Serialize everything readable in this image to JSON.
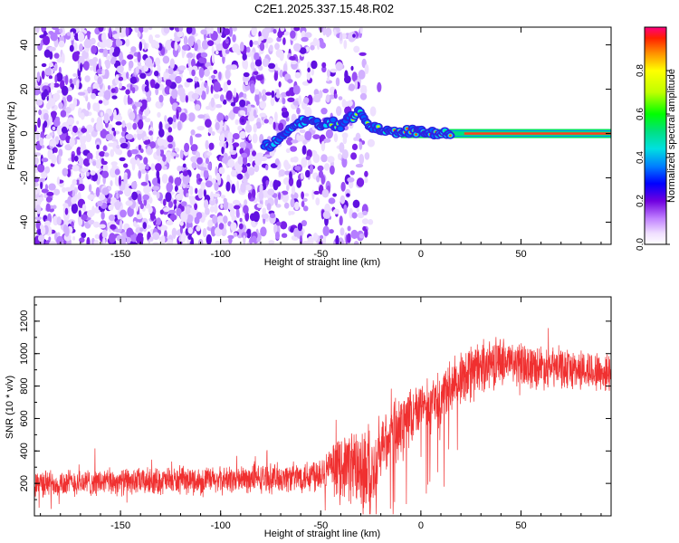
{
  "title": "C2E1.2025.337.15.48.R02",
  "chart_data": [
    {
      "type": "heatmap",
      "xlabel": "Height of straight line (km)",
      "ylabel": "Frequency (Hz)",
      "xlim": [
        -193,
        95
      ],
      "ylim": [
        -50,
        48
      ],
      "xticks": [
        -150,
        -100,
        -50,
        0,
        50
      ],
      "yticks": [
        -40,
        -20,
        0,
        20,
        40
      ],
      "colorbar": {
        "label": "Normalized spectral amplitude",
        "range": [
          0.0,
          1.0
        ],
        "ticks": [
          0.0,
          0.2,
          0.4,
          0.6,
          0.8
        ]
      },
      "noise_region_x": [
        -193,
        -27
      ],
      "ridge": {
        "x": [
          -75,
          -70,
          -65,
          -60,
          -55,
          -50,
          -45,
          -40,
          -35,
          -30,
          -25,
          -20,
          -10,
          0,
          10,
          20,
          50,
          95
        ],
        "y": [
          -5,
          -2,
          2,
          5,
          7,
          3,
          5,
          4,
          8,
          9,
          3,
          2,
          1,
          0.5,
          0,
          0,
          0,
          0
        ]
      },
      "grid": false
    },
    {
      "type": "line",
      "xlabel": "Height of straight line (km)",
      "ylabel": "SNR (10 * v/v)",
      "xlim": [
        -193,
        95
      ],
      "ylim": [
        0,
        1350
      ],
      "xticks": [
        -150,
        -100,
        -50,
        0,
        50
      ],
      "yticks": [
        200,
        400,
        600,
        800,
        1000,
        1200
      ],
      "series": [
        {
          "color": "#f03030",
          "profile_x": [
            -193,
            -150,
            -100,
            -60,
            -45,
            -35,
            -25,
            -20,
            -10,
            0,
            10,
            20,
            30,
            40,
            50,
            60,
            70,
            80,
            95
          ],
          "profile_mean": [
            200,
            210,
            220,
            240,
            290,
            320,
            250,
            420,
            570,
            650,
            720,
            850,
            920,
            960,
            930,
            920,
            910,
            900,
            880
          ],
          "profile_spread": [
            80,
            80,
            80,
            90,
            130,
            220,
            250,
            200,
            180,
            160,
            160,
            150,
            150,
            140,
            130,
            130,
            120,
            120,
            120
          ]
        }
      ],
      "grid": false
    }
  ]
}
